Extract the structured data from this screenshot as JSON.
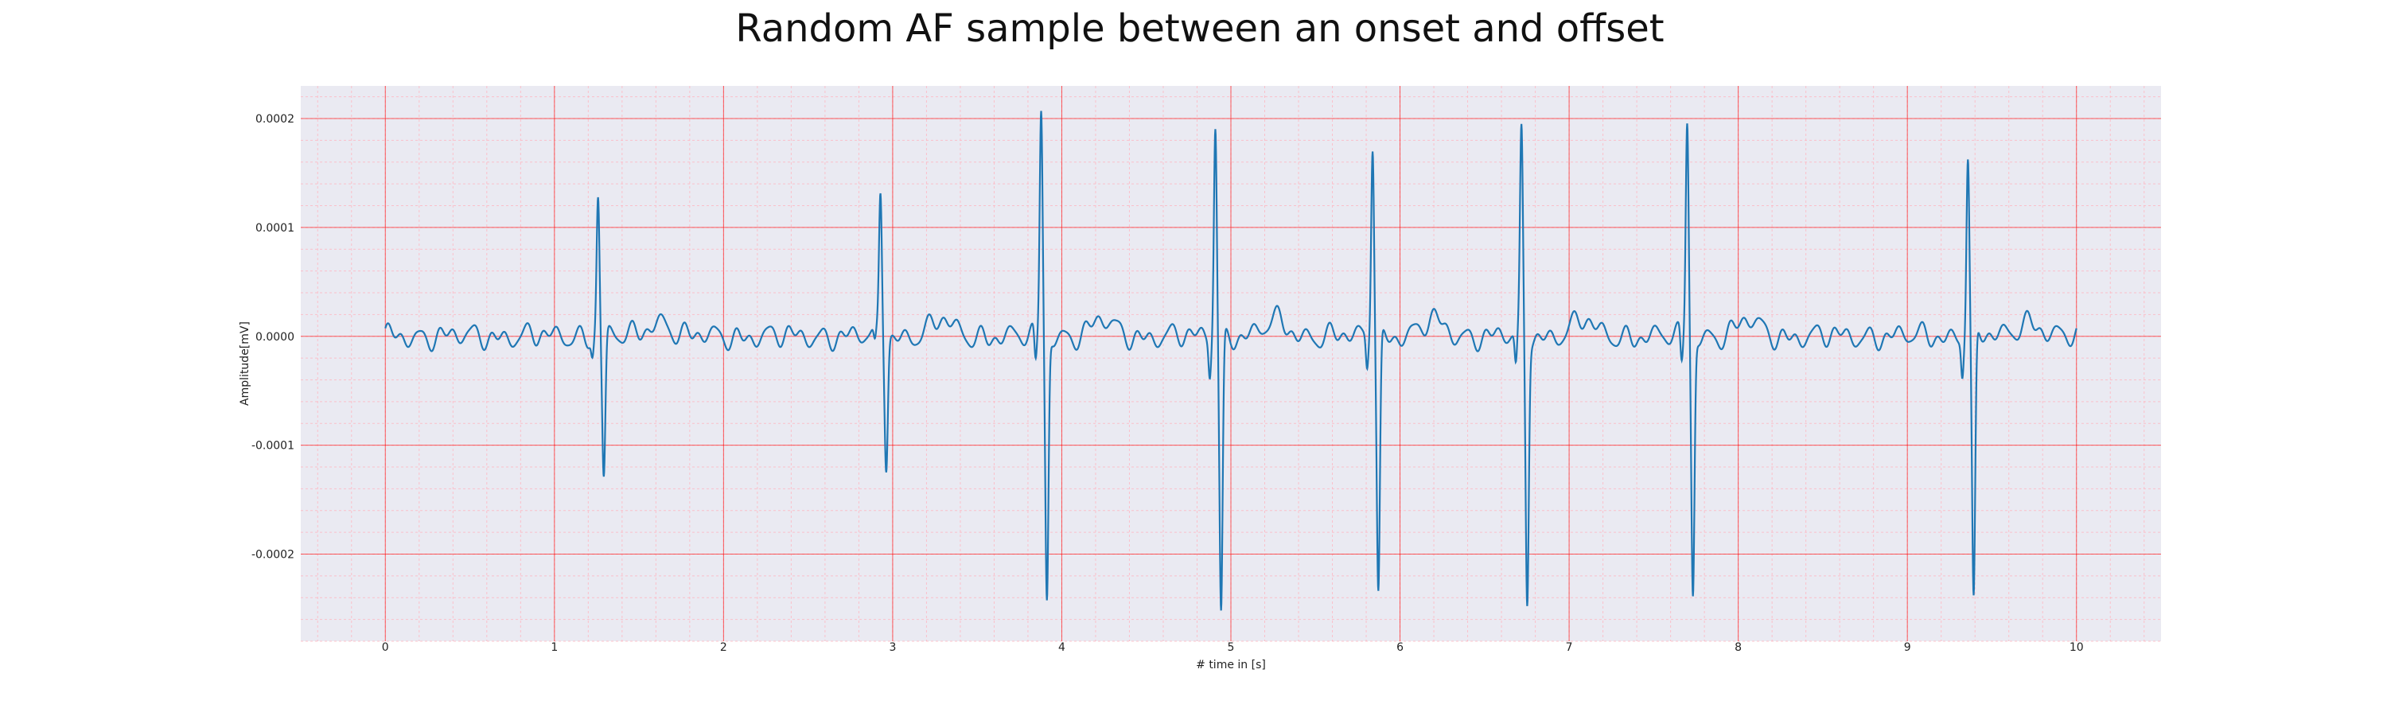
{
  "chart_data": {
    "type": "line",
    "title": "Random AF sample between an onset and offset",
    "xlabel": "# time in [s]",
    "ylabel": "Amplitude[mV]",
    "xlim": [
      -0.5,
      10.5
    ],
    "ylim": [
      -0.00028,
      0.00023
    ],
    "xticks": [
      0,
      1,
      2,
      3,
      4,
      5,
      6,
      7,
      8,
      9,
      10
    ],
    "xtick_labels": [
      "0",
      "1",
      "2",
      "3",
      "4",
      "5",
      "6",
      "7",
      "8",
      "9",
      "10"
    ],
    "yticks": [
      0.0002,
      0.0001,
      0.0,
      -0.0001,
      -0.0002
    ],
    "ytick_labels": [
      "0.0002",
      "0.0001",
      "0.0000",
      "-0.0001",
      "-0.0002"
    ],
    "grid": true,
    "grid_minor": true,
    "colors": {
      "line": "#1f77b4",
      "plot_background": "#eaeaf2",
      "grid_major": "#ff0000",
      "grid_minor": "#ffb6c1"
    },
    "beats": [
      {
        "t": 1.27,
        "peak": 0.00013,
        "trough": -0.00013
      },
      {
        "t": 2.94,
        "peak": 0.00013,
        "trough": -0.000115
      },
      {
        "t": 3.89,
        "peak": 0.00021,
        "trough": -0.000243
      },
      {
        "t": 4.92,
        "peak": 0.000197,
        "trough": -0.000255
      },
      {
        "t": 5.85,
        "peak": 0.000182,
        "trough": -0.000235
      },
      {
        "t": 6.73,
        "peak": 0.000184,
        "trough": -0.000242
      },
      {
        "t": 7.71,
        "peak": 0.0002,
        "trough": -0.000238
      },
      {
        "t": 9.37,
        "peak": 0.000168,
        "trough": -0.00025
      }
    ],
    "baseline_amplitude": 1.2e-05,
    "t_start": 0.0,
    "t_end": 10.0
  }
}
